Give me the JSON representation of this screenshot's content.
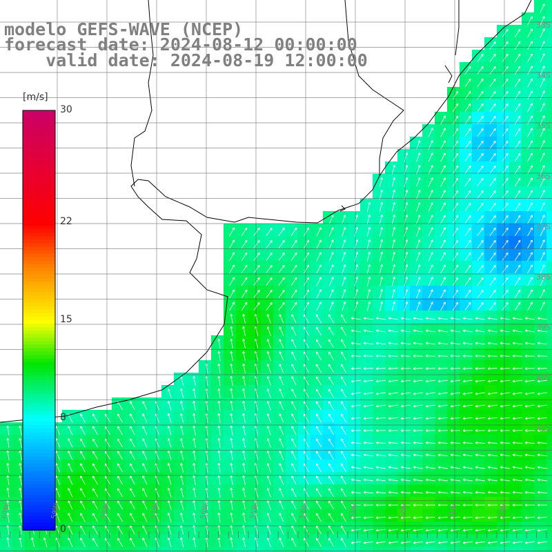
{
  "header": {
    "title": "modelo GEFS-WAVE (NCEP)",
    "forecast": "forecast date: 2024-08-12 00:00:00",
    "valid": "valid date: 2024-08-19 12:00:00"
  },
  "colorbar": {
    "unit": "[m/s]",
    "min": 0,
    "max": 30,
    "ticks": [
      "30",
      "22",
      "15",
      "8",
      "0"
    ],
    "tick_values": [
      30,
      22,
      15,
      8,
      0
    ],
    "colors": [
      "#0000ff",
      "#00ffff",
      "#00e600",
      "#ffff00",
      "#ff8000",
      "#ff0000",
      "#cc0066"
    ]
  },
  "map": {
    "variable": "wind speed with direction arrows",
    "land_color": "#ffffff",
    "coastline_color": "#000000",
    "grid_color": "#555555",
    "arrow_color": "#ffffff",
    "lat_labels": [
      "33S",
      "34S",
      "35S",
      "36S",
      "37S",
      "38S",
      "39S",
      "40S",
      "41S"
    ],
    "lon_labels": [
      "60W",
      "59W",
      "58W",
      "57W",
      "56W",
      "55W",
      "54W",
      "53W",
      "52W",
      "51W",
      "50W"
    ]
  }
}
